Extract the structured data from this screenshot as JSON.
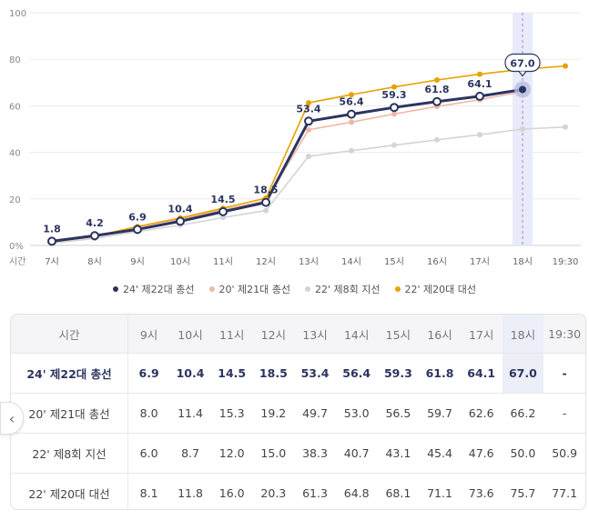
{
  "chart_data": {
    "type": "line",
    "title": "",
    "xlabel": "시간",
    "ylabel": "",
    "ylim": [
      0,
      100
    ],
    "y_ticks": [
      "0%",
      "20",
      "40",
      "60",
      "80",
      "100"
    ],
    "x": [
      "7시",
      "8시",
      "9시",
      "10시",
      "11시",
      "12시",
      "13시",
      "14시",
      "15시",
      "16시",
      "17시",
      "18시",
      "19:30"
    ],
    "highlight_index": 11,
    "series": [
      {
        "name": "22' 제8회 지선",
        "color": "#d4d4d4",
        "values": [
          1.0,
          3.0,
          6.0,
          8.7,
          12.0,
          15.0,
          38.3,
          40.7,
          43.1,
          45.4,
          47.6,
          50.0,
          50.9
        ]
      },
      {
        "name": "20' 제21대 총선",
        "color": "#f0b7a6",
        "values": [
          1.5,
          3.8,
          8.0,
          11.4,
          15.3,
          19.2,
          49.7,
          53.0,
          56.5,
          59.7,
          62.6,
          66.2,
          null
        ]
      },
      {
        "name": "22' 제20대 대선",
        "color": "#e8a100",
        "values": [
          1.6,
          4.0,
          8.1,
          11.8,
          16.0,
          20.3,
          61.3,
          64.8,
          68.1,
          71.1,
          73.6,
          75.7,
          77.1
        ]
      },
      {
        "name": "24' 제22대 총선",
        "color": "#2b3460",
        "values": [
          1.8,
          4.2,
          6.9,
          10.4,
          14.5,
          18.5,
          53.4,
          56.4,
          59.3,
          61.8,
          64.1,
          67.0,
          null
        ],
        "labels": [
          "1.8",
          "4.2",
          "6.9",
          "10.4",
          "14.5",
          "18.5",
          "53.4",
          "56.4",
          "59.3",
          "61.8",
          "64.1",
          "67.0",
          ""
        ]
      }
    ]
  },
  "legend": [
    {
      "label": "24' 제22대 총선",
      "color": "#2b3460"
    },
    {
      "label": "20' 제21대 총선",
      "color": "#f0b7a6"
    },
    {
      "label": "22' 제8회 지선",
      "color": "#d4d4d4"
    },
    {
      "label": "22' 제20대 대선",
      "color": "#e8a100"
    }
  ],
  "table": {
    "corner_label": "시간",
    "columns": [
      "9시",
      "10시",
      "11시",
      "12시",
      "13시",
      "14시",
      "15시",
      "16시",
      "17시",
      "18시",
      "19:30"
    ],
    "highlight_col": 9,
    "rows": [
      {
        "label": "24' 제22대 총선",
        "bold": true,
        "cells": [
          "6.9",
          "10.4",
          "14.5",
          "18.5",
          "53.4",
          "56.4",
          "59.3",
          "61.8",
          "64.1",
          "67.0",
          "-"
        ]
      },
      {
        "label": "20' 제21대 총선",
        "bold": false,
        "cells": [
          "8.0",
          "11.4",
          "15.3",
          "19.2",
          "49.7",
          "53.0",
          "56.5",
          "59.7",
          "62.6",
          "66.2",
          "-"
        ]
      },
      {
        "label": "22' 제8회 지선",
        "bold": false,
        "cells": [
          "6.0",
          "8.7",
          "12.0",
          "15.0",
          "38.3",
          "40.7",
          "43.1",
          "45.4",
          "47.6",
          "50.0",
          "50.9"
        ]
      },
      {
        "label": "22' 제20대 대선",
        "bold": false,
        "cells": [
          "8.1",
          "11.8",
          "16.0",
          "20.3",
          "61.3",
          "64.8",
          "68.1",
          "71.1",
          "73.6",
          "75.7",
          "77.1"
        ]
      }
    ]
  },
  "nav": {
    "prev_glyph": "‹"
  }
}
